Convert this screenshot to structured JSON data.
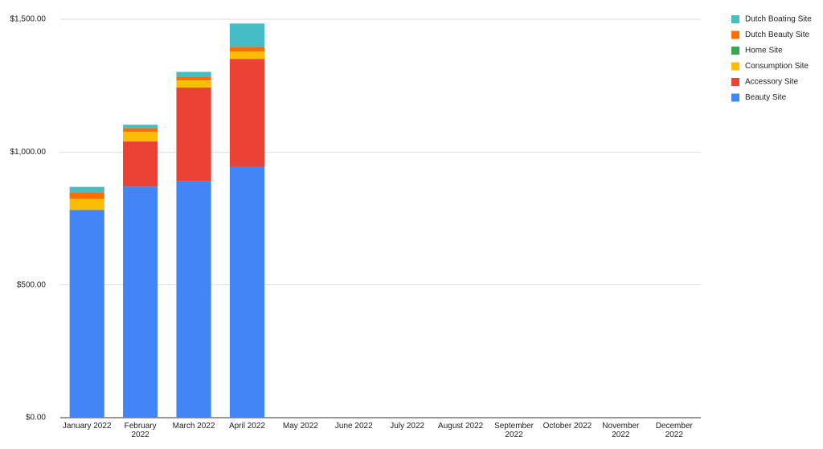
{
  "chart_data": {
    "type": "stacked_bar",
    "categories": [
      "January 2022",
      "February 2022",
      "March 2022",
      "April 2022",
      "May 2022",
      "June 2022",
      "July 2022",
      "August 2022",
      "September 2022",
      "October 2022",
      "November 2022",
      "December 2022"
    ],
    "series": [
      {
        "name": "Beauty Site",
        "color": "#4285f4",
        "values": [
          782,
          870,
          891,
          945,
          null,
          null,
          null,
          null,
          null,
          null,
          null,
          null
        ]
      },
      {
        "name": "Accessory Site",
        "color": "#ea4335",
        "values": [
          0,
          170,
          352,
          406,
          null,
          null,
          null,
          null,
          null,
          null,
          null,
          null
        ]
      },
      {
        "name": "Consumption Site",
        "color": "#fbbc04",
        "values": [
          42,
          36,
          27,
          27,
          null,
          null,
          null,
          null,
          null,
          null,
          null,
          null
        ]
      },
      {
        "name": "Home Site",
        "color": "#34a853",
        "values": [
          0,
          0,
          2,
          0,
          null,
          null,
          null,
          null,
          null,
          null,
          null,
          null
        ]
      },
      {
        "name": "Dutch Beauty Site",
        "color": "#ff6d01",
        "values": [
          24,
          15,
          12,
          18,
          null,
          null,
          null,
          null,
          null,
          null,
          null,
          null
        ]
      },
      {
        "name": "Dutch Boating Site",
        "color": "#46bdc6",
        "values": [
          21,
          12,
          18,
          88,
          null,
          null,
          null,
          null,
          null,
          null,
          null,
          null
        ]
      }
    ],
    "ylim": [
      0,
      1500
    ],
    "yticks": [
      {
        "value": 0,
        "label": "$0.00"
      },
      {
        "value": 500,
        "label": "$500.00"
      },
      {
        "value": 1000,
        "label": "$1,000.00"
      },
      {
        "value": 1500,
        "label": "$1,500.00"
      }
    ],
    "grid": true,
    "legend": "right"
  }
}
